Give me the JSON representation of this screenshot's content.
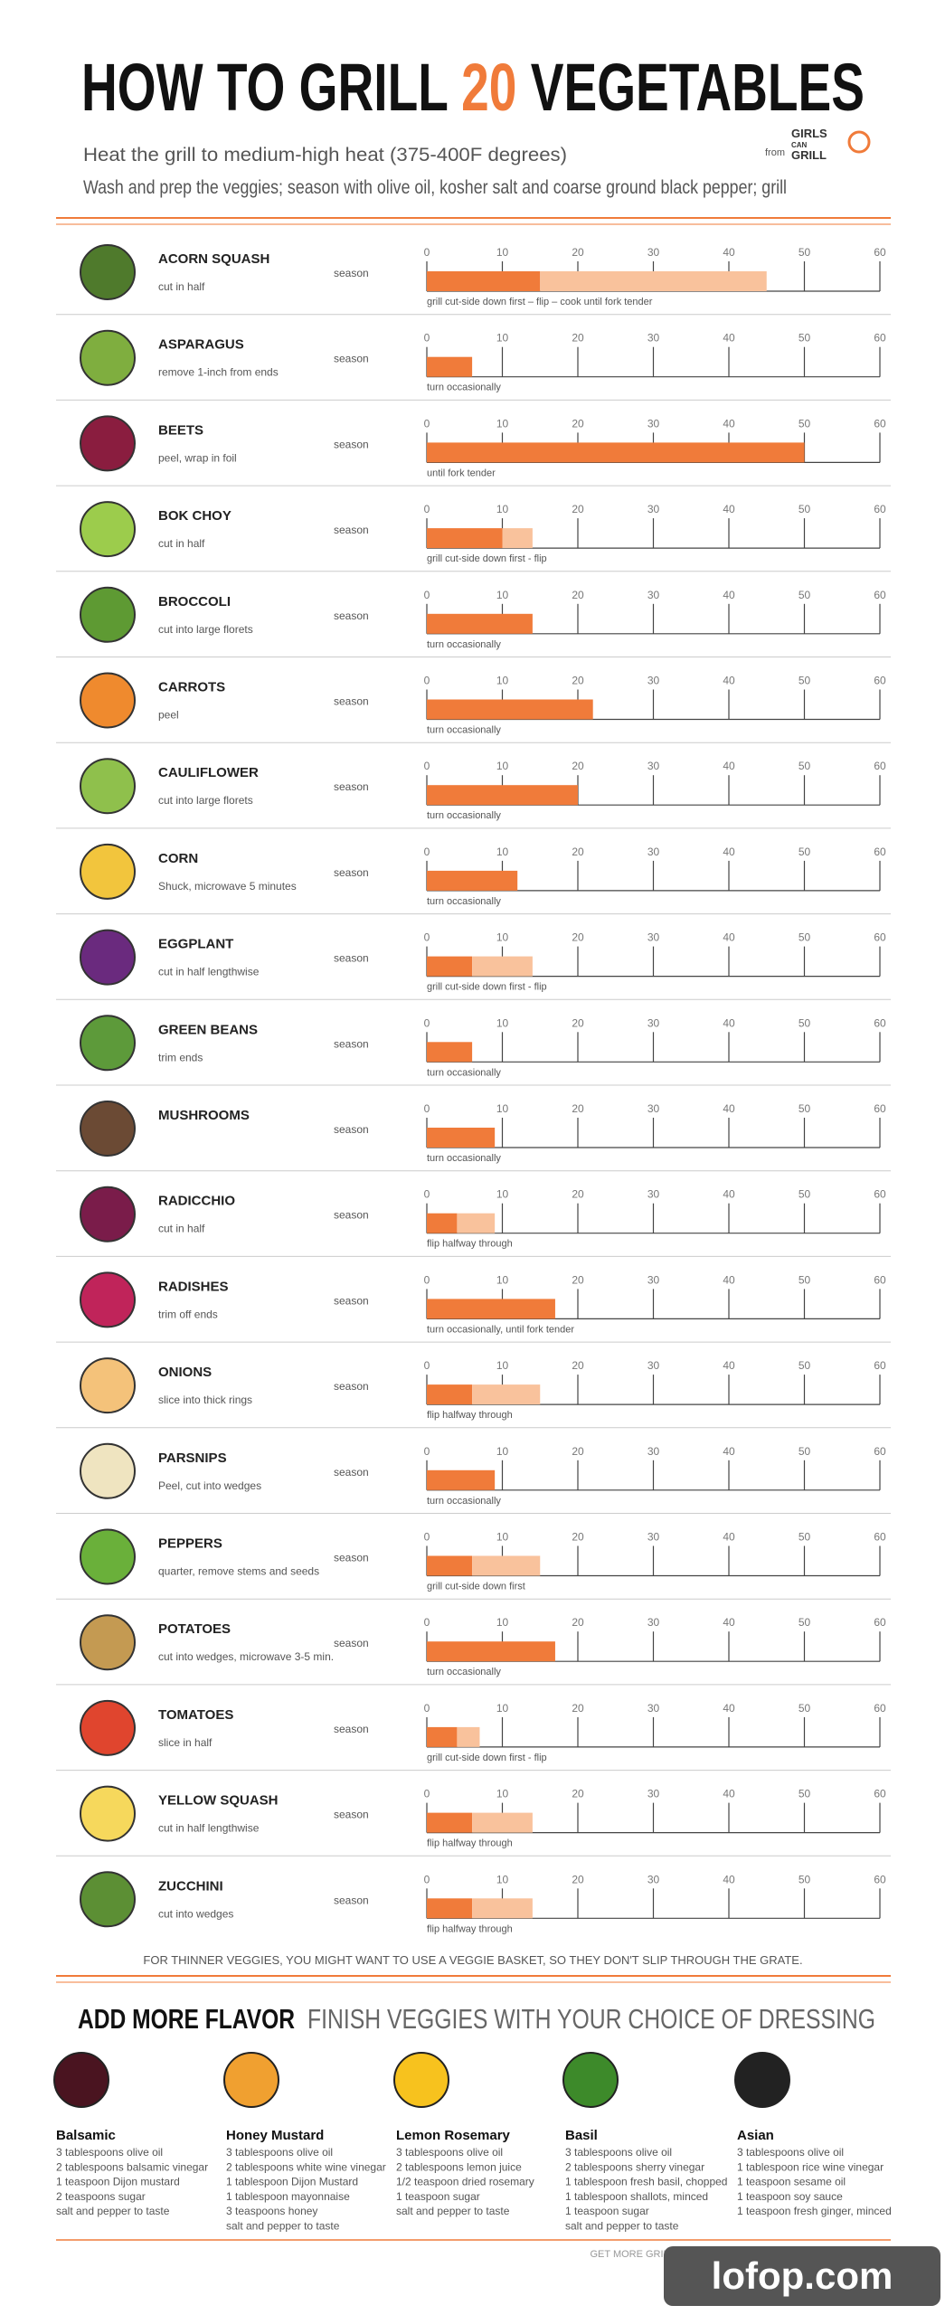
{
  "header": {
    "title": [
      "HOW TO GRILL ",
      "20",
      " VEGETABLES"
    ],
    "subtitle": [
      "Heat the grill to medium-high heat (375-400F degrees)",
      "Wash and prep the veggies; season with olive oil, kosher salt and coarse ground black pepper; grill"
    ],
    "logo": {
      "from": "from",
      "lines": [
        "GIRLS",
        "CAN",
        "GRILL"
      ]
    }
  },
  "chart_data": {
    "type": "bar",
    "xlim": [
      0,
      60
    ],
    "xticks": [
      0,
      10,
      20,
      30,
      40,
      50,
      60
    ],
    "colors": [
      "#f07b3a",
      "#f9c29c"
    ],
    "rows": [
      {
        "name": "ACORN SQUASH",
        "prep": "cut in half",
        "season": "season",
        "values": [
          15,
          30
        ],
        "note": "grill cut-side down first – flip – cook until fork tender"
      },
      {
        "name": "ASPARAGUS",
        "prep": "remove 1-inch from ends",
        "season": "season",
        "values": [
          6
        ],
        "note": "turn occasionally"
      },
      {
        "name": "BEETS",
        "prep": "peel, wrap in foil",
        "season": "season",
        "values": [
          50
        ],
        "note": "until fork tender"
      },
      {
        "name": "BOK CHOY",
        "prep": "cut in half",
        "season": "season",
        "values": [
          10,
          4
        ],
        "note": "grill cut-side down first - flip"
      },
      {
        "name": "BROCCOLI",
        "prep": "cut into large florets",
        "season": "season",
        "values": [
          14
        ],
        "note": "turn occasionally"
      },
      {
        "name": "CARROTS",
        "prep": "peel",
        "season": "season",
        "values": [
          22
        ],
        "note": "turn occasionally"
      },
      {
        "name": "CAULIFLOWER",
        "prep": "cut into large florets",
        "season": "season",
        "values": [
          20
        ],
        "note": "turn occasionally"
      },
      {
        "name": "CORN",
        "prep": "Shuck, microwave 5 minutes",
        "season": "season",
        "values": [
          12
        ],
        "note": "turn occasionally"
      },
      {
        "name": "EGGPLANT",
        "prep": "cut in half lengthwise",
        "season": "season",
        "values": [
          6,
          8
        ],
        "note": "grill cut-side down first - flip"
      },
      {
        "name": "GREEN BEANS",
        "prep": "trim ends",
        "season": "season",
        "values": [
          6
        ],
        "note": "turn occasionally"
      },
      {
        "name": "MUSHROOMS",
        "prep": null,
        "season": "season",
        "values": [
          9
        ],
        "note": "turn occasionally"
      },
      {
        "name": "RADICCHIO",
        "prep": "cut in half",
        "season": "season",
        "values": [
          4,
          5
        ],
        "note": "flip halfway through"
      },
      {
        "name": "RADISHES",
        "prep": "trim off ends",
        "season": "season",
        "values": [
          17
        ],
        "note": "turn occasionally, until fork tender"
      },
      {
        "name": "ONIONS",
        "prep": "slice into thick rings",
        "season": "season",
        "values": [
          6,
          9
        ],
        "note": "flip halfway through"
      },
      {
        "name": "PARSNIPS",
        "prep": "Peel, cut into wedges",
        "season": "season",
        "values": [
          9
        ],
        "note": "turn occasionally"
      },
      {
        "name": "PEPPERS",
        "prep": "quarter, remove stems and seeds",
        "season": "season",
        "values": [
          6,
          9
        ],
        "note": "grill cut-side down first"
      },
      {
        "name": "POTATOES",
        "prep": "cut into wedges, microwave 3-5 min.",
        "season": "season",
        "values": [
          17
        ],
        "note": "turn occasionally"
      },
      {
        "name": "TOMATOES",
        "prep": "slice in half",
        "season": "season",
        "values": [
          4,
          3
        ],
        "note": "grill cut-side down first - flip"
      },
      {
        "name": "YELLOW SQUASH",
        "prep": "cut in half lengthwise",
        "season": "season",
        "values": [
          6,
          8
        ],
        "note": "flip halfway through"
      },
      {
        "name": "ZUCCHINI",
        "prep": "cut into wedges",
        "season": "season",
        "values": [
          6,
          8
        ],
        "note": "flip halfway through"
      }
    ]
  },
  "tip": "FOR THINNER VEGGIES, YOU MIGHT WANT TO USE A VEGGIE BASKET, SO THEY DON'T SLIP THROUGH THE GRATE.",
  "flavor": {
    "title": "ADD MORE FLAVOR",
    "subtitle": "FINISH VEGGIES WITH YOUR CHOICE OF DRESSING"
  },
  "dressings": [
    {
      "name": "Balsamic",
      "lines": [
        "3 tablespoons olive oil",
        "2 tablespoons balsamic vinegar",
        "1 teaspoon Dijon mustard",
        "2 teaspoons sugar",
        "salt and pepper to taste"
      ]
    },
    {
      "name": "Honey Mustard",
      "lines": [
        "3 tablespoons olive oil",
        "2 tablespoons white wine vinegar",
        "1 tablespoon Dijon Mustard",
        "1 tablespoon mayonnaise",
        "3 teaspoons honey",
        "salt and pepper to taste"
      ]
    },
    {
      "name": "Lemon Rosemary",
      "lines": [
        "3 tablespoons olive oil",
        "2 tablespoons lemon juice",
        "1/2 teaspoon dried rosemary",
        "1 teaspoon sugar",
        "salt and pepper to taste"
      ]
    },
    {
      "name": "Basil",
      "lines": [
        "3 tablespoons olive oil",
        "2 tablespoons sherry vinegar",
        "1 tablespoon fresh basil, chopped",
        "1 tablespoon shallots, minced",
        "1 teaspoon sugar",
        "salt and pepper to taste"
      ]
    },
    {
      "name": "Asian",
      "lines": [
        "3 tablespoons olive oil",
        "1 tablespoon rice wine vinegar",
        "1 teaspoon sesame oil",
        "1 teaspoon soy sauce",
        "1 teaspoon fresh ginger, minced"
      ]
    }
  ],
  "footer": "GET MORE GRILL TIPS AND RECIPES AT GIRLSCANGRILL.COM",
  "watermark": "lofop.com"
}
